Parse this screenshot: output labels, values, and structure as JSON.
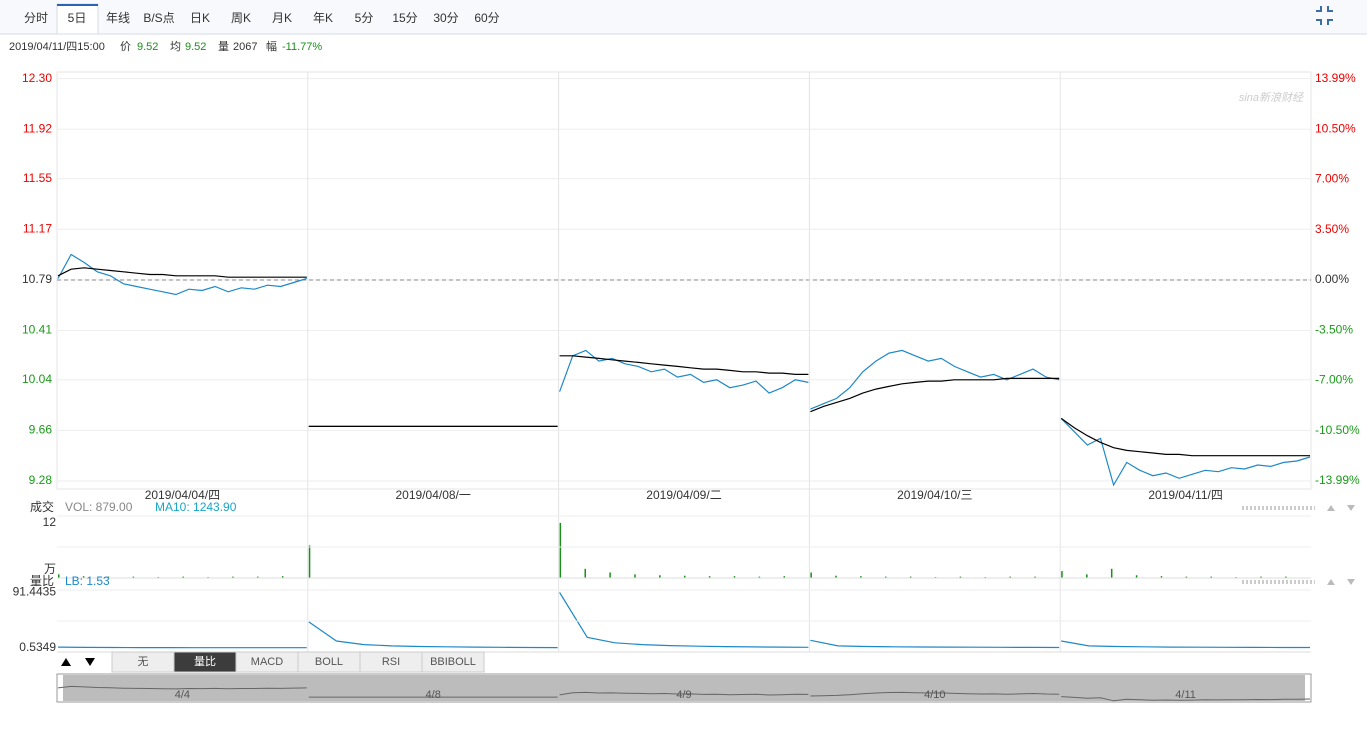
{
  "toolbar": {
    "tabs": [
      "分时",
      "5日",
      "年线",
      "B/S点",
      "日K",
      "周K",
      "月K",
      "年K",
      "5分",
      "15分",
      "30分",
      "60分"
    ],
    "active": 1
  },
  "info": {
    "datetime": "2019/04/11/四15:00",
    "price_label": "价",
    "price": "9.52",
    "avg_label": "均",
    "avg": "9.52",
    "vol_label": "量",
    "vol": "2067",
    "chg_label": "幅",
    "chg": "-11.77%"
  },
  "chart_data": {
    "type": "line",
    "watermark": "sina新浪财经",
    "price_color": "#1e88c8",
    "avg_color": "#000000",
    "grid": true,
    "ylim": [
      9.22,
      12.35
    ],
    "yticks": [
      {
        "value": 12.3,
        "label": "12.30"
      },
      11.92,
      11.55,
      11.17,
      10.79,
      10.41,
      10.04,
      9.66,
      9.28
    ],
    "y2lim": [
      -14.55,
      14.48
    ],
    "y2ticks": [
      {
        "value": 13.99,
        "label": "13.99%"
      },
      {
        "value": 10.5,
        "label": "10.50%"
      },
      {
        "value": 7,
        "label": "7.00%"
      },
      {
        "value": 3.5,
        "label": "3.50%"
      },
      {
        "value": 0,
        "label": "0.00%"
      },
      {
        "value": -3.5,
        "label": "-3.50%"
      },
      {
        "value": -7,
        "label": "-7.00%"
      },
      {
        "value": -10.5,
        "label": "-10.50%"
      },
      {
        "value": -13.99,
        "label": "-13.99%"
      }
    ],
    "days": [
      {
        "label": "2019/04/04/四",
        "nav_label": "4/4",
        "price": [
          10.8,
          10.98,
          10.92,
          10.85,
          10.82,
          10.76,
          10.74,
          10.72,
          10.7,
          10.68,
          10.72,
          10.71,
          10.74,
          10.7,
          10.73,
          10.72,
          10.75,
          10.74,
          10.77,
          10.8
        ],
        "avg": [
          10.82,
          10.87,
          10.88,
          10.87,
          10.86,
          10.85,
          10.84,
          10.83,
          10.83,
          10.82,
          10.82,
          10.82,
          10.82,
          10.81,
          10.81,
          10.81,
          10.81,
          10.81,
          10.81,
          10.81
        ],
        "volume": [
          0.8,
          0.4,
          0.3,
          0.3,
          0.2,
          0.3,
          0.2,
          0.3,
          0.3,
          0.4
        ],
        "lb": [
          2,
          1.5,
          1.3,
          1.2,
          1.1,
          1,
          1,
          1,
          1,
          1
        ]
      },
      {
        "label": "2019/04/08/一",
        "nav_label": "4/8",
        "price": [
          9.69,
          9.69
        ],
        "avg": [
          9.69,
          9.69
        ],
        "volume": [
          7.1,
          0.1,
          0.1,
          0.1,
          0.1,
          0.1,
          0.1,
          0.1,
          0.1,
          0.1
        ],
        "lb": [
          43,
          12,
          6,
          4,
          3,
          2.5,
          2,
          1.6,
          1.3,
          1.1
        ]
      },
      {
        "label": "2019/04/09/二",
        "nav_label": "4/9",
        "price": [
          9.95,
          10.22,
          10.26,
          10.18,
          10.2,
          10.16,
          10.14,
          10.1,
          10.12,
          10.06,
          10.08,
          10.02,
          10.04,
          9.98,
          10,
          10.03,
          9.94,
          9.98,
          10.04,
          10.02
        ],
        "avg": [
          10.22,
          10.22,
          10.21,
          10.2,
          10.19,
          10.18,
          10.17,
          10.16,
          10.15,
          10.14,
          10.13,
          10.12,
          10.12,
          10.11,
          10.1,
          10.1,
          10.09,
          10.09,
          10.08,
          10.08
        ],
        "volume": [
          12,
          2,
          1.2,
          0.8,
          0.6,
          0.5,
          0.4,
          0.4,
          0.3,
          0.4
        ],
        "lb": [
          91,
          18,
          9,
          6,
          4.5,
          3.5,
          2.8,
          2.3,
          2,
          1.7
        ]
      },
      {
        "label": "2019/04/10/三",
        "nav_label": "4/10",
        "price": [
          9.82,
          9.86,
          9.9,
          9.98,
          10.1,
          10.18,
          10.24,
          10.26,
          10.22,
          10.18,
          10.2,
          10.14,
          10.1,
          10.06,
          10.08,
          10.04,
          10.08,
          10.12,
          10.06,
          10.04
        ],
        "avg": [
          9.8,
          9.84,
          9.87,
          9.9,
          9.94,
          9.97,
          9.99,
          10.01,
          10.02,
          10.03,
          10.03,
          10.04,
          10.04,
          10.04,
          10.04,
          10.05,
          10.05,
          10.05,
          10.05,
          10.05
        ],
        "volume": [
          1.2,
          0.5,
          0.4,
          0.3,
          0.3,
          0.2,
          0.3,
          0.2,
          0.3,
          0.3
        ],
        "lb": [
          13,
          4,
          3,
          2.5,
          2.2,
          2,
          1.8,
          1.6,
          1.5,
          1.4
        ]
      },
      {
        "label": "2019/04/11/四",
        "nav_label": "4/11",
        "price": [
          9.75,
          9.65,
          9.55,
          9.6,
          9.25,
          9.42,
          9.36,
          9.32,
          9.34,
          9.3,
          9.33,
          9.36,
          9.35,
          9.38,
          9.37,
          9.4,
          9.39,
          9.42,
          9.43,
          9.46
        ],
        "avg": [
          9.75,
          9.68,
          9.62,
          9.57,
          9.53,
          9.51,
          9.5,
          9.49,
          9.48,
          9.48,
          9.47,
          9.47,
          9.47,
          9.47,
          9.47,
          9.47,
          9.47,
          9.47,
          9.47,
          9.47
        ],
        "volume": [
          1.5,
          0.8,
          2,
          0.6,
          0.4,
          0.3,
          0.3,
          0.2,
          0.3,
          0.3
        ],
        "lb": [
          12,
          4,
          3,
          2.4,
          2,
          1.8,
          1.6,
          1.5,
          1.4,
          1.3
        ]
      }
    ],
    "volume_panel": {
      "title": "成交",
      "vol": "VOL: 879.00",
      "ma10": "MA10: 1243.90",
      "ylim": [
        0,
        13.5
      ],
      "yticks": [
        12
      ],
      "unit": "万",
      "color": "#1a8f1a"
    },
    "lb_panel": {
      "title": "量比",
      "lb": "LB: 1.53",
      "ylim": [
        -6,
        95
      ],
      "yticks": [
        91.4435,
        0.5349
      ],
      "color": "#1e88c8"
    }
  },
  "indicators": {
    "buttons": [
      "无",
      "量比",
      "MACD",
      "BOLL",
      "RSI",
      "BBIBOLL"
    ],
    "active": 1
  }
}
